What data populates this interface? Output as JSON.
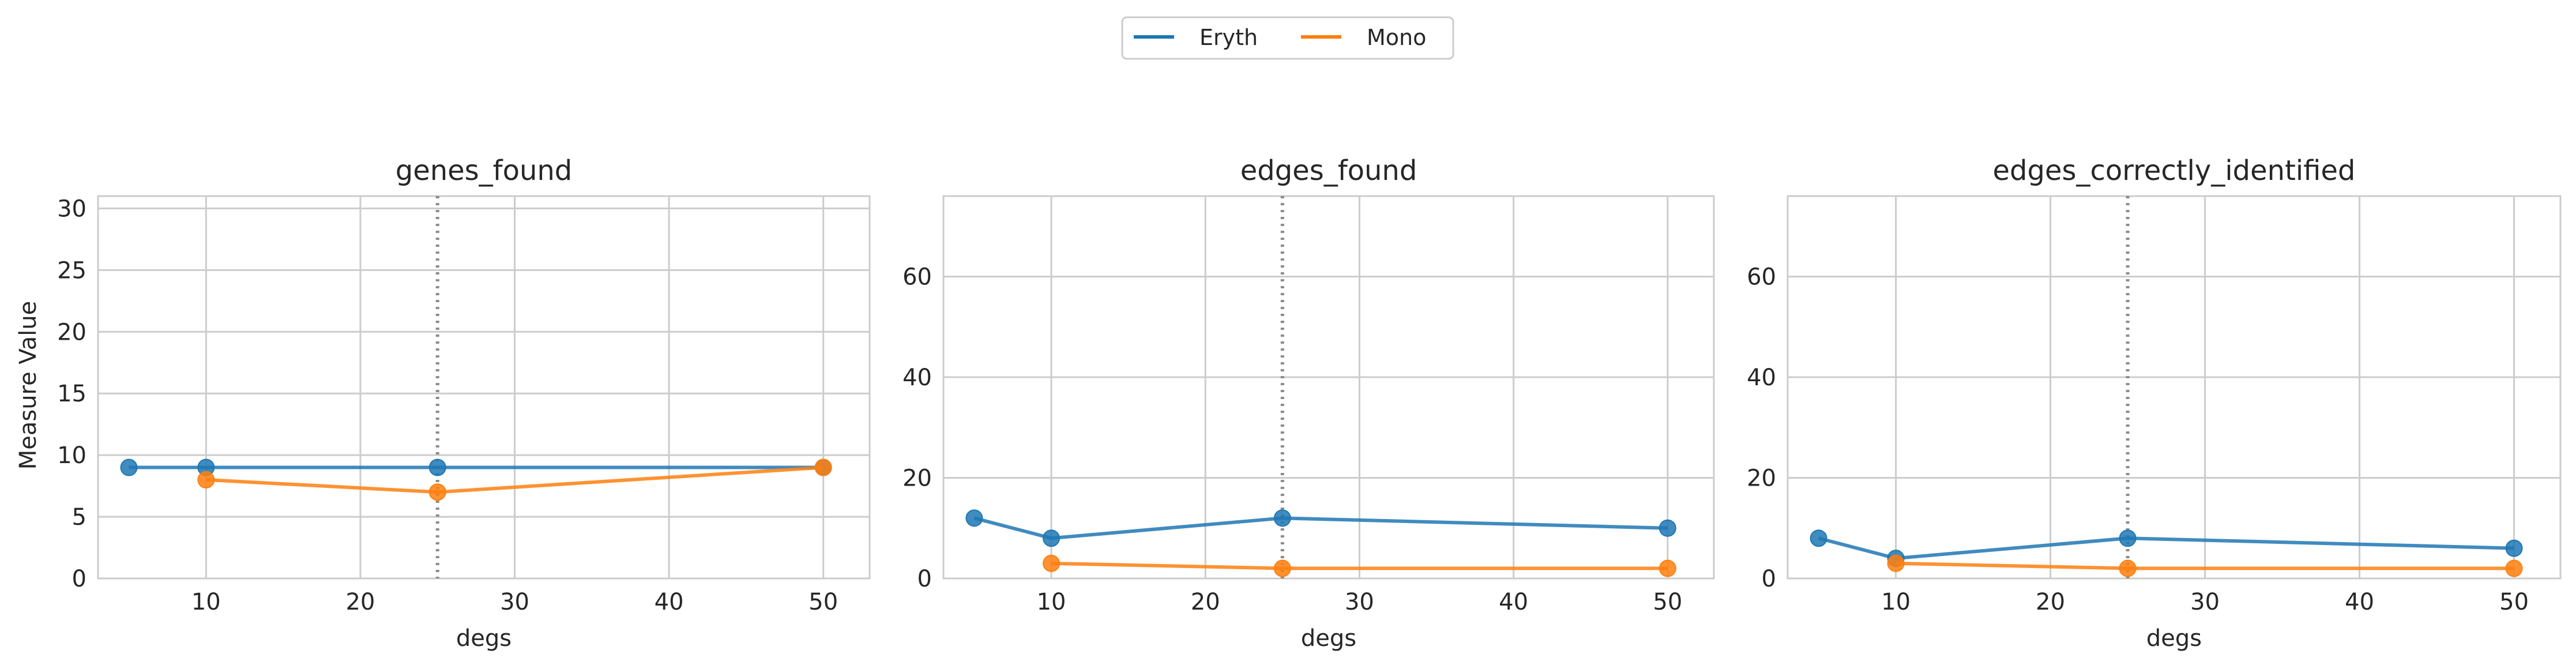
{
  "legend": {
    "placement": "top-center",
    "entries": [
      {
        "name": "Eryth",
        "color": "#1f77b4"
      },
      {
        "name": "Mono",
        "color": "#ff7f0e"
      }
    ]
  },
  "chart_data": [
    {
      "type": "line",
      "title": "genes_found",
      "xlabel": "degs",
      "ylabel": "Measure Value",
      "xlim": [
        3,
        53
      ],
      "ylim": [
        0,
        31
      ],
      "xticks": [
        10,
        20,
        30,
        40,
        50
      ],
      "yticks": [
        0,
        5,
        10,
        15,
        20,
        25,
        30
      ],
      "vline": 25,
      "grid": true,
      "series": [
        {
          "name": "Eryth",
          "color": "#1f77b4",
          "x": [
            5,
            10,
            25,
            50
          ],
          "y": [
            9,
            9,
            9,
            9
          ]
        },
        {
          "name": "Mono",
          "color": "#ff7f0e",
          "x": [
            10,
            25,
            50
          ],
          "y": [
            8,
            7,
            9
          ]
        }
      ]
    },
    {
      "type": "line",
      "title": "edges_found",
      "xlabel": "degs",
      "ylabel": "",
      "xlim": [
        3,
        53
      ],
      "ylim": [
        0,
        76
      ],
      "xticks": [
        10,
        20,
        30,
        40,
        50
      ],
      "yticks": [
        0,
        20,
        40,
        60
      ],
      "vline": 25,
      "grid": true,
      "series": [
        {
          "name": "Eryth",
          "color": "#1f77b4",
          "x": [
            5,
            10,
            25,
            50
          ],
          "y": [
            12,
            8,
            12,
            10
          ]
        },
        {
          "name": "Mono",
          "color": "#ff7f0e",
          "x": [
            10,
            25,
            50
          ],
          "y": [
            3,
            2,
            2
          ]
        }
      ]
    },
    {
      "type": "line",
      "title": "edges_correctly_identified",
      "xlabel": "degs",
      "ylabel": "",
      "xlim": [
        3,
        53
      ],
      "ylim": [
        0,
        76
      ],
      "xticks": [
        10,
        20,
        30,
        40,
        50
      ],
      "yticks": [
        0,
        20,
        40,
        60
      ],
      "vline": 25,
      "grid": true,
      "series": [
        {
          "name": "Eryth",
          "color": "#1f77b4",
          "x": [
            5,
            10,
            25,
            50
          ],
          "y": [
            8,
            4,
            8,
            6
          ]
        },
        {
          "name": "Mono",
          "color": "#ff7f0e",
          "x": [
            10,
            25,
            50
          ],
          "y": [
            3,
            2,
            2
          ]
        }
      ]
    }
  ]
}
